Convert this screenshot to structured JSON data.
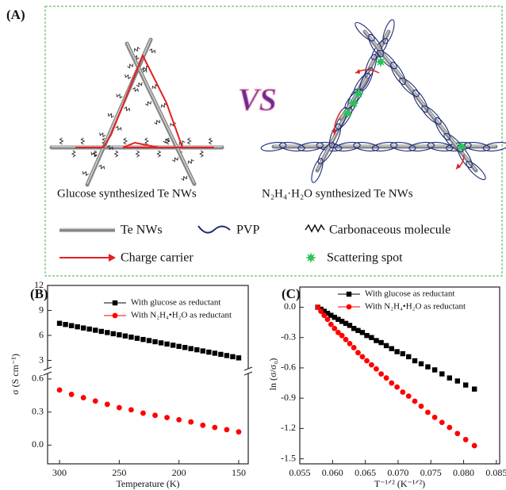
{
  "panel_a": {
    "label": "(A)",
    "vs": "VS",
    "captions": [
      "Glucose synthesized Te NWs",
      "N₂H₄·H₂O synthesized Te NWs"
    ],
    "legend": [
      "Te NWs",
      "PVP",
      "Carbonaceous molecule",
      "Charge carrier",
      "Scattering spot"
    ]
  },
  "chart_data": [
    {
      "type": "scatter",
      "label": "(B)",
      "xlabel": "Temperature (K)",
      "ylabel": "σ (S cm⁻¹)",
      "xlim": [
        310,
        142
      ],
      "xticks": [
        300,
        250,
        200,
        150
      ],
      "ylim": [
        -0.17,
        0.65
      ],
      "yticks": [
        {
          "value": 0,
          "label": "0.0"
        },
        0.3,
        0.6
      ],
      "upper_ylim": [
        2,
        12
      ],
      "upper_yticks": [
        3,
        6,
        9,
        12
      ],
      "series": [
        {
          "name": "With glucose as reductant",
          "color": "#000000",
          "marker": "square",
          "axis": "upper",
          "x": [
            300,
            295,
            290,
            285,
            280,
            275,
            270,
            265,
            260,
            255,
            250,
            245,
            240,
            235,
            230,
            225,
            220,
            215,
            210,
            205,
            200,
            195,
            190,
            185,
            180,
            175,
            170,
            165,
            160,
            155,
            150
          ],
          "values": [
            7.45,
            7.31,
            7.17,
            7.03,
            6.89,
            6.76,
            6.62,
            6.48,
            6.34,
            6.2,
            6.07,
            5.93,
            5.79,
            5.65,
            5.51,
            5.38,
            5.24,
            5.1,
            4.96,
            4.82,
            4.68,
            4.55,
            4.41,
            4.27,
            4.13,
            3.99,
            3.86,
            3.72,
            3.58,
            3.44,
            3.3
          ]
        },
        {
          "name": "With N₂H₄•H₂O as reductant",
          "color": "#ff0000",
          "marker": "circle",
          "x": [
            300,
            290,
            280,
            270,
            260,
            250,
            240,
            230,
            220,
            210,
            200,
            190,
            180,
            170,
            160,
            150
          ],
          "values": [
            0.5,
            0.46,
            0.43,
            0.4,
            0.37,
            0.34,
            0.32,
            0.29,
            0.27,
            0.25,
            0.23,
            0.21,
            0.18,
            0.16,
            0.14,
            0.12
          ]
        }
      ]
    },
    {
      "type": "scatter",
      "label": "(C)",
      "xlabel": "T⁻¹ᐟ² (K⁻¹ᐟ²)",
      "ylabel": "ln (σ/σ₀)",
      "xlim": [
        0.055,
        0.0855
      ],
      "xticks": [
        0.055,
        {
          "value": 0.06,
          "label": "0.060"
        },
        0.065,
        {
          "value": 0.07,
          "label": "0.070"
        },
        0.075,
        {
          "value": 0.08,
          "label": "0.080"
        },
        0.085
      ],
      "ylim": [
        -1.55,
        0.2
      ],
      "yticks": [
        {
          "value": 0,
          "label": "0.0"
        },
        -0.3,
        -0.6,
        -0.9,
        -1.2,
        -1.5
      ],
      "series": [
        {
          "name": "With glucose as reductant",
          "color": "#000000",
          "marker": "square",
          "x": [
            0.05774,
            0.05822,
            0.05872,
            0.05923,
            0.05976,
            0.0603,
            0.06086,
            0.06143,
            0.06202,
            0.06262,
            0.06325,
            0.06389,
            0.06455,
            0.06523,
            0.06594,
            0.06667,
            0.06742,
            0.0682,
            0.06901,
            0.06984,
            0.07071,
            0.07161,
            0.07255,
            0.07352,
            0.07454,
            0.07559,
            0.0767,
            0.07785,
            0.07906,
            0.08032,
            0.08165
          ],
          "values": [
            0,
            -0.02,
            -0.04,
            -0.06,
            -0.08,
            -0.1,
            -0.12,
            -0.14,
            -0.16,
            -0.18,
            -0.21,
            -0.23,
            -0.25,
            -0.28,
            -0.3,
            -0.33,
            -0.35,
            -0.38,
            -0.41,
            -0.44,
            -0.46,
            -0.49,
            -0.53,
            -0.56,
            -0.59,
            -0.62,
            -0.66,
            -0.7,
            -0.73,
            -0.77,
            -0.81
          ]
        },
        {
          "name": "With N₂H₄•H₂O as reductant",
          "color": "#ff0000",
          "marker": "circle",
          "x": [
            0.05774,
            0.05822,
            0.05872,
            0.05923,
            0.05976,
            0.0603,
            0.06086,
            0.06143,
            0.06202,
            0.06262,
            0.06325,
            0.06389,
            0.06455,
            0.06523,
            0.06594,
            0.06667,
            0.06742,
            0.0682,
            0.06901,
            0.06984,
            0.07071,
            0.07161,
            0.07255,
            0.07352,
            0.07454,
            0.07559,
            0.0767,
            0.07785,
            0.07906,
            0.08032,
            0.08165
          ],
          "values": [
            0,
            -0.04,
            -0.08,
            -0.12,
            -0.17,
            -0.21,
            -0.25,
            -0.28,
            -0.32,
            -0.36,
            -0.4,
            -0.45,
            -0.49,
            -0.53,
            -0.57,
            -0.61,
            -0.66,
            -0.7,
            -0.75,
            -0.79,
            -0.84,
            -0.88,
            -0.93,
            -0.98,
            -1.04,
            -1.09,
            -1.14,
            -1.19,
            -1.25,
            -1.31,
            -1.37
          ]
        }
      ]
    }
  ]
}
